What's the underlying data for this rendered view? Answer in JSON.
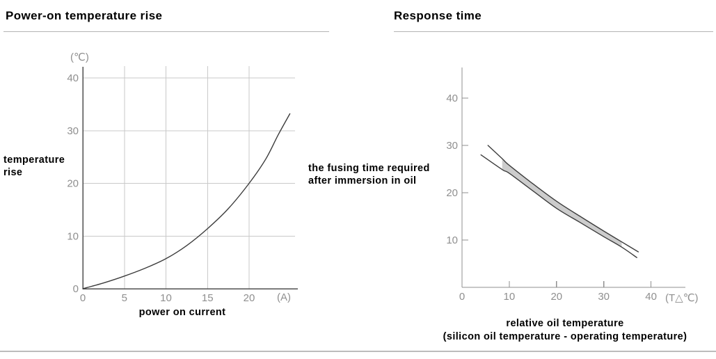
{
  "page": {
    "kind": "relay datasheet characteristic curves",
    "bottom_divider": true
  },
  "colors": {
    "title_text": "#000000",
    "title_underline": "#b3b3b3",
    "tick_label": "#8f8f8f",
    "grid_line": "#c9c9c9",
    "left_axis": "#4f4f4f",
    "right_axis": "#8f8f8f",
    "curve": "#3c3c3c",
    "band_fill": "#cccccc",
    "bottom_divider": "#bcbcbc",
    "axis_title_text": "#000000"
  },
  "chart_data": [
    {
      "type": "line",
      "title": "Power-on temperature rise",
      "xlabel": "power on current",
      "ylabel": "temperature\nrise",
      "x_unit": "(A)",
      "y_unit": "(℃)",
      "xlim": [
        0,
        25.7
      ],
      "ylim": [
        0,
        42
      ],
      "x_ticks": [
        0,
        5,
        10,
        15,
        20
      ],
      "y_ticks": [
        0,
        10,
        20,
        30,
        40
      ],
      "grid": true,
      "legend": "none",
      "series": [
        {
          "name": "temperature rise vs power-on current",
          "x": [
            0,
            2.5,
            5,
            7.5,
            10,
            12.5,
            15,
            17.5,
            20,
            22,
            23.5,
            24.9
          ],
          "y": [
            0,
            1.1,
            2.4,
            3.9,
            5.7,
            8.2,
            11.4,
            15.2,
            20,
            24.6,
            29.2,
            33.2
          ]
        }
      ]
    },
    {
      "type": "line",
      "title": "Response time",
      "xlabel": "relative oil temperature\n(silicon oil temperature - operating temperature)",
      "ylabel": "the fusing time required\nafter immersion in oil",
      "x_unit": "(T△℃)",
      "y_unit": "",
      "xlim": [
        0,
        47
      ],
      "ylim": [
        0,
        46.5
      ],
      "x_ticks": [
        0,
        10,
        20,
        30,
        40
      ],
      "y_ticks": [
        10,
        20,
        30,
        40
      ],
      "grid": false,
      "legend": "none",
      "band": {
        "x_start": 8.5,
        "x_end": 33.8
      },
      "series": [
        {
          "name": "upper fusing time limit",
          "x": [
            5.5,
            8.5,
            10,
            15,
            20,
            25,
            30,
            33.8,
            37.3
          ],
          "y": [
            30,
            27.2,
            25.8,
            21.9,
            18.2,
            15.0,
            11.9,
            9.6,
            7.5
          ]
        },
        {
          "name": "lower fusing time limit",
          "x": [
            4,
            8.5,
            10,
            15,
            20,
            25,
            30,
            33.8,
            37
          ],
          "y": [
            28,
            24.9,
            24.1,
            20.4,
            16.7,
            13.7,
            10.7,
            8.5,
            6.3
          ]
        }
      ]
    }
  ]
}
